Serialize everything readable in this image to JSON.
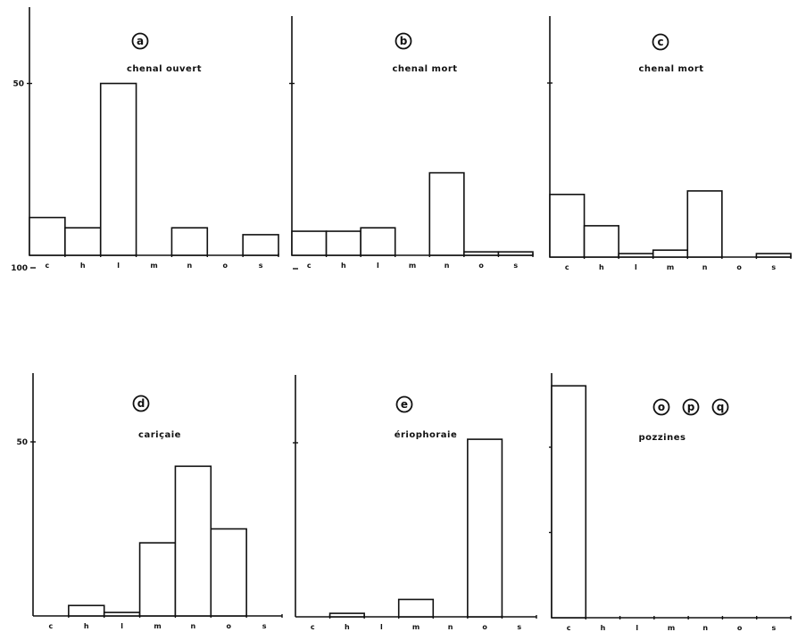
{
  "chart_data": [
    {
      "type": "bar",
      "panel_letters": [
        "a"
      ],
      "title": "chenal ouvert",
      "categories": [
        "c",
        "h",
        "l",
        "m",
        "n",
        "o",
        "s"
      ],
      "values": [
        11,
        8,
        50,
        0,
        8,
        0,
        6
      ],
      "ylim": [
        0,
        145
      ],
      "yticks": [
        50,
        100
      ],
      "ytick_labels": [
        "50",
        "100"
      ],
      "show_ytick_labels": true
    },
    {
      "type": "bar",
      "panel_letters": [
        "b"
      ],
      "title": "chenal mort",
      "categories": [
        "c",
        "h",
        "l",
        "m",
        "n",
        "o",
        "s"
      ],
      "values": [
        7,
        7,
        8,
        0,
        24,
        1,
        1
      ],
      "ylim": [
        0,
        145
      ],
      "yticks": [
        50,
        100
      ],
      "ytick_labels": [
        "50",
        "100"
      ],
      "show_ytick_labels": false
    },
    {
      "type": "bar",
      "panel_letters": [
        "c"
      ],
      "title": "chenal mort",
      "categories": [
        "c",
        "h",
        "l",
        "m",
        "n",
        "o",
        "s"
      ],
      "values": [
        18,
        9,
        1,
        2,
        19,
        0,
        1
      ],
      "ylim": [
        0,
        145
      ],
      "yticks": [
        50,
        100
      ],
      "ytick_labels": [
        "50",
        "100"
      ],
      "show_ytick_labels": false
    },
    {
      "type": "bar",
      "panel_letters": [
        "d"
      ],
      "title": "cariçaie",
      "categories": [
        "c",
        "h",
        "l",
        "m",
        "n",
        "o",
        "s"
      ],
      "values": [
        0,
        3,
        1,
        21,
        43,
        25,
        0
      ],
      "ylim": [
        0,
        145
      ],
      "yticks": [
        50,
        100
      ],
      "ytick_labels": [
        "50",
        "100"
      ],
      "show_ytick_labels": true
    },
    {
      "type": "bar",
      "panel_letters": [
        "e"
      ],
      "title": "ériophoraie",
      "categories": [
        "c",
        "h",
        "l",
        "m",
        "n",
        "o",
        "s"
      ],
      "values": [
        0,
        1,
        0,
        5,
        0,
        51,
        0
      ],
      "ylim": [
        0,
        145
      ],
      "yticks": [
        50,
        100
      ],
      "ytick_labels": [
        "50",
        "100"
      ],
      "show_ytick_labels": false
    },
    {
      "type": "bar",
      "panel_letters": [
        "o",
        "p",
        "q"
      ],
      "title": "pozzines",
      "categories": [
        "c",
        "h",
        "l",
        "m",
        "n",
        "o",
        "s"
      ],
      "values": [
        136,
        0,
        0,
        0,
        0,
        0,
        0
      ],
      "ylim": [
        0,
        145
      ],
      "yticks": [
        50,
        100
      ],
      "ytick_labels": [
        "50",
        "100"
      ],
      "show_ytick_labels": false
    }
  ]
}
